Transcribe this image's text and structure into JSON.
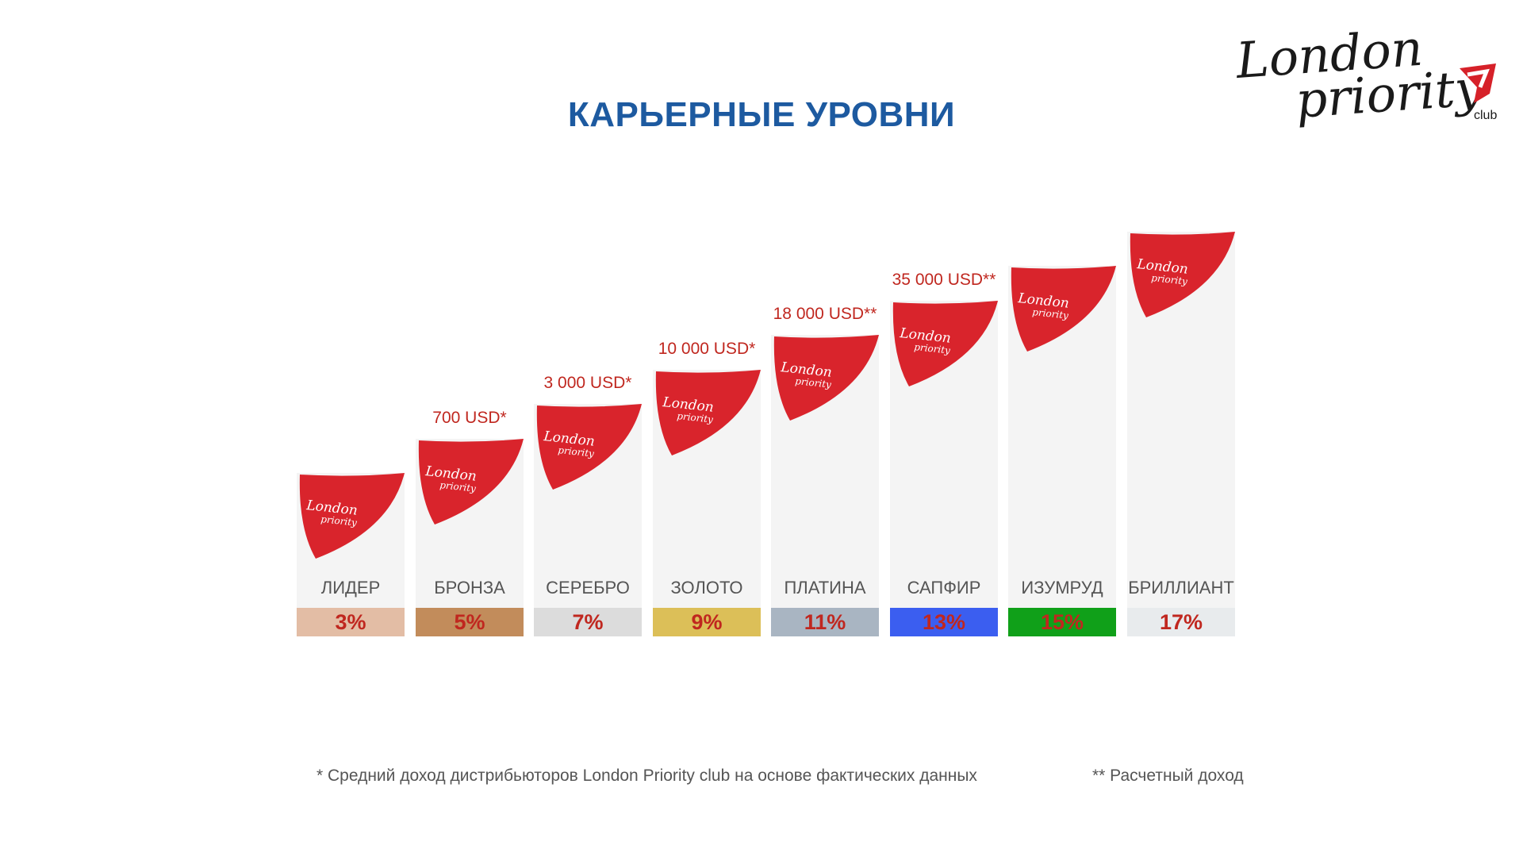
{
  "header": {
    "title": "КАРЬЕРНЫЕ УРОВНИ"
  },
  "logo": {
    "line1": "London",
    "line2": "priority",
    "suffix": "club",
    "brand_color": "#d62129"
  },
  "levels": [
    {
      "name": "ЛИДЕР",
      "percent": "3%",
      "income": "",
      "band_color": "#e3bda5",
      "text_color": "#c0271f"
    },
    {
      "name": "БРОНЗА",
      "percent": "5%",
      "income": "700 USD*",
      "band_color": "#c28c5b",
      "text_color": "#c0271f"
    },
    {
      "name": "СЕРЕБРО",
      "percent": "7%",
      "income": "3 000 USD*",
      "band_color": "#dcdcdc",
      "text_color": "#c0271f"
    },
    {
      "name": "ЗОЛОТО",
      "percent": "9%",
      "income": "10 000 USD*",
      "band_color": "#dcbf58",
      "text_color": "#c0271f"
    },
    {
      "name": "ПЛАТИНА",
      "percent": "11%",
      "income": "18 000 USD**",
      "band_color": "#a9b5c2",
      "text_color": "#c0271f"
    },
    {
      "name": "САПФИР",
      "percent": "13%",
      "income": "35 000 USD**",
      "band_color": "#3b5ef0",
      "text_color": "#c0271f"
    },
    {
      "name": "ИЗУМРУД",
      "percent": "15%",
      "income": "",
      "band_color": "#10a019",
      "text_color": "#c0271f"
    },
    {
      "name": "БРИЛЛИАНТ",
      "percent": "17%",
      "income": "",
      "band_color": "#e8ebed",
      "text_color": "#c0271f"
    }
  ],
  "shield": {
    "color": "#d9242c",
    "script_top": "London",
    "script_bottom": "priority"
  },
  "footnotes": {
    "actual": "* Средний доход дистрибьюторов London Priority club на основе фактических данных",
    "estimated": "** Расчетный доход"
  }
}
